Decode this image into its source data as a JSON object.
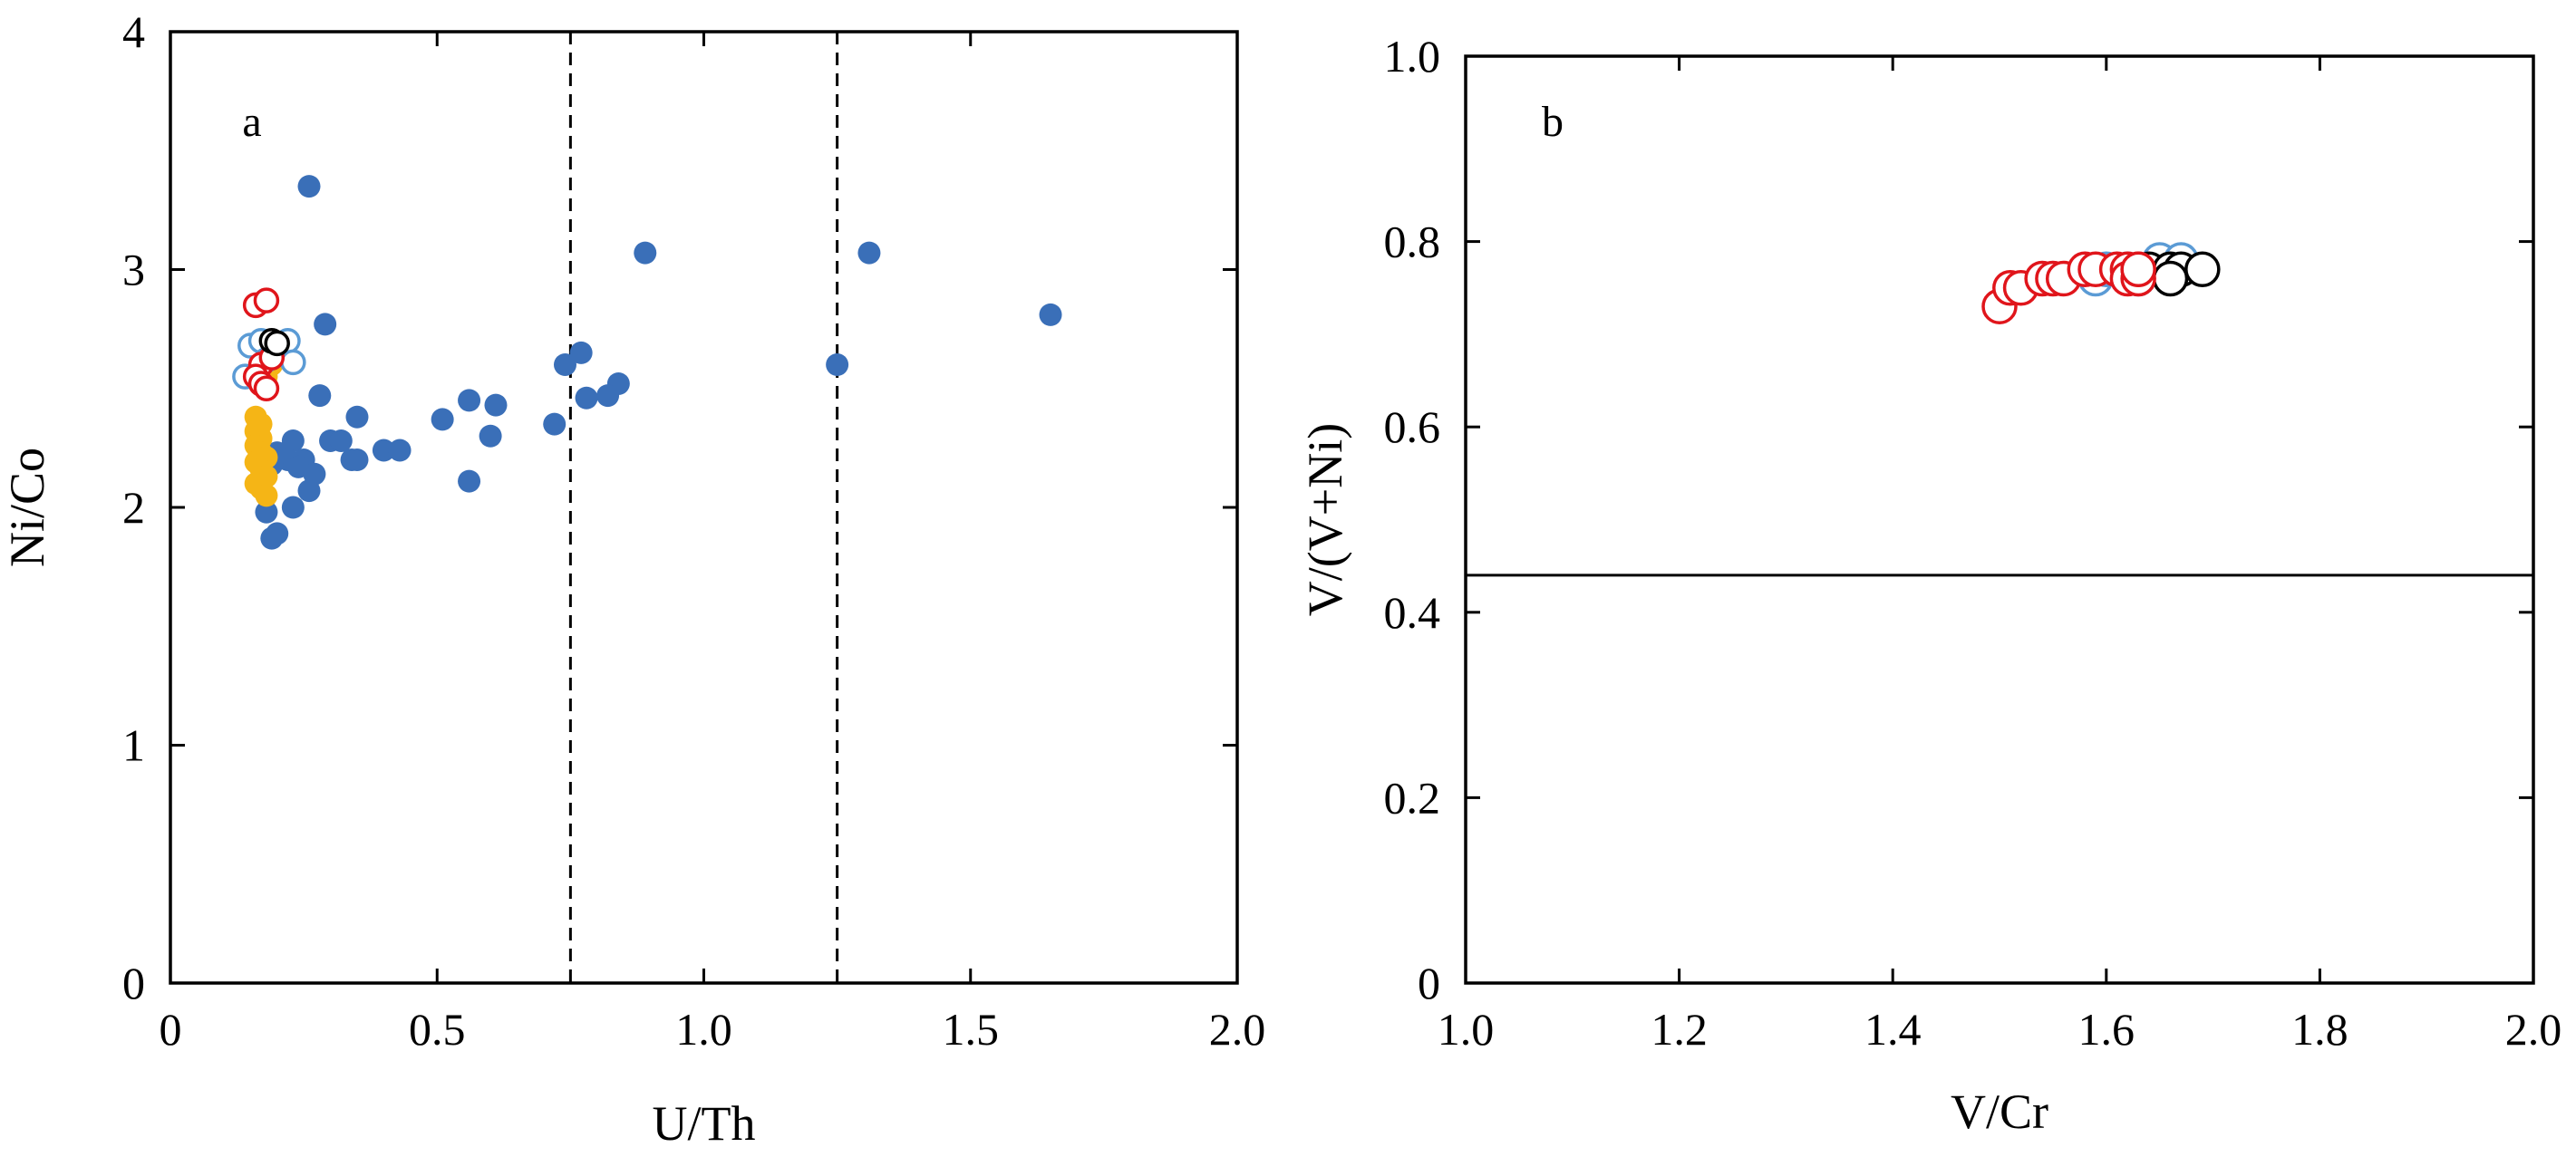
{
  "chart_data": [
    {
      "type": "scatter",
      "panel_label": "a",
      "xlabel": "U/Th",
      "ylabel": "Ni/Co",
      "xlim": [
        0,
        2.0
      ],
      "ylim": [
        0,
        4
      ],
      "x_ticks": [
        0,
        0.5,
        1.0,
        1.5,
        2.0
      ],
      "x_tick_labels": [
        "0",
        "0.5",
        "1.0",
        "1.5",
        "2.0"
      ],
      "y_ticks": [
        0,
        1,
        2,
        3,
        4
      ],
      "y_tick_labels": [
        "0",
        "1",
        "2",
        "3",
        "4"
      ],
      "grid": false,
      "legend": "none",
      "reference_lines": [
        {
          "orientation": "vertical",
          "x": 0.75,
          "style": "dashed"
        },
        {
          "orientation": "vertical",
          "x": 1.25,
          "style": "dashed"
        }
      ],
      "series": [
        {
          "marker": "filled-circle",
          "color": "#3a6fb8",
          "points": [
            [
              0.26,
              3.35
            ],
            [
              0.89,
              3.07
            ],
            [
              1.31,
              3.07
            ],
            [
              1.65,
              2.81
            ],
            [
              0.29,
              2.77
            ],
            [
              0.77,
              2.65
            ],
            [
              0.74,
              2.6
            ],
            [
              1.25,
              2.6
            ],
            [
              0.84,
              2.52
            ],
            [
              0.28,
              2.47
            ],
            [
              0.56,
              2.45
            ],
            [
              0.78,
              2.46
            ],
            [
              0.82,
              2.47
            ],
            [
              0.61,
              2.43
            ],
            [
              0.35,
              2.38
            ],
            [
              0.51,
              2.37
            ],
            [
              0.72,
              2.35
            ],
            [
              0.6,
              2.3
            ],
            [
              0.3,
              2.28
            ],
            [
              0.32,
              2.28
            ],
            [
              0.23,
              2.28
            ],
            [
              0.2,
              2.23
            ],
            [
              0.4,
              2.24
            ],
            [
              0.43,
              2.24
            ],
            [
              0.25,
              2.2
            ],
            [
              0.34,
              2.2
            ],
            [
              0.35,
              2.2
            ],
            [
              0.22,
              2.2
            ],
            [
              0.24,
              2.17
            ],
            [
              0.19,
              2.18
            ],
            [
              0.27,
              2.14
            ],
            [
              0.26,
              2.07
            ],
            [
              0.56,
              2.11
            ],
            [
              0.23,
              2.0
            ],
            [
              0.18,
              1.98
            ],
            [
              0.19,
              1.87
            ],
            [
              0.2,
              1.89
            ]
          ]
        },
        {
          "marker": "filled-circle",
          "color": "#f5b516",
          "points": [
            [
              0.16,
              2.38
            ],
            [
              0.17,
              2.35
            ],
            [
              0.16,
              2.32
            ],
            [
              0.17,
              2.29
            ],
            [
              0.16,
              2.26
            ],
            [
              0.17,
              2.23
            ],
            [
              0.18,
              2.21
            ],
            [
              0.16,
              2.19
            ],
            [
              0.17,
              2.16
            ],
            [
              0.18,
              2.13
            ],
            [
              0.16,
              2.1
            ],
            [
              0.17,
              2.08
            ],
            [
              0.18,
              2.05
            ],
            [
              0.19,
              2.6
            ],
            [
              0.18,
              2.55
            ]
          ]
        },
        {
          "marker": "open-circle",
          "color": "#5b9bd5",
          "points": [
            [
              0.15,
              2.68
            ],
            [
              0.17,
              2.7
            ],
            [
              0.22,
              2.7
            ],
            [
              0.14,
              2.55
            ],
            [
              0.23,
              2.61
            ],
            [
              0.18,
              2.62
            ]
          ]
        },
        {
          "marker": "open-circle",
          "color": "#e0151b",
          "points": [
            [
              0.16,
              2.85
            ],
            [
              0.18,
              2.87
            ],
            [
              0.17,
              2.6
            ],
            [
              0.16,
              2.55
            ],
            [
              0.17,
              2.52
            ],
            [
              0.18,
              2.5
            ],
            [
              0.19,
              2.63
            ]
          ]
        },
        {
          "marker": "open-circle",
          "color": "#000000",
          "points": [
            [
              0.19,
              2.7
            ],
            [
              0.2,
              2.69
            ]
          ]
        }
      ]
    },
    {
      "type": "scatter",
      "panel_label": "b",
      "xlabel": "V/Cr",
      "ylabel": "V/(V+Ni)",
      "xlim": [
        1.0,
        2.0
      ],
      "ylim": [
        0,
        1.0
      ],
      "x_ticks": [
        1.0,
        1.2,
        1.4,
        1.6,
        1.8,
        2.0
      ],
      "x_tick_labels": [
        "1.0",
        "1.2",
        "1.4",
        "1.6",
        "1.8",
        "2.0"
      ],
      "y_ticks": [
        0,
        0.2,
        0.4,
        0.6,
        0.8,
        1.0
      ],
      "y_tick_labels": [
        "0",
        "0.2",
        "0.4",
        "0.6",
        "0.8",
        "1.0"
      ],
      "grid": false,
      "legend": "none",
      "reference_lines": [
        {
          "orientation": "horizontal",
          "y": 0.44,
          "style": "solid"
        }
      ],
      "series": [
        {
          "marker": "open-circle",
          "color": "#5b9bd5",
          "points": [
            [
              1.59,
              0.76
            ],
            [
              1.62,
              0.77
            ],
            [
              1.64,
              0.77
            ],
            [
              1.65,
              0.78
            ],
            [
              1.67,
              0.78
            ],
            [
              1.63,
              0.76
            ],
            [
              1.6,
              0.77
            ]
          ]
        },
        {
          "marker": "open-circle",
          "color": "#000000",
          "points": [
            [
              1.64,
              0.77
            ],
            [
              1.66,
              0.77
            ],
            [
              1.67,
              0.77
            ],
            [
              1.69,
              0.77
            ],
            [
              1.66,
              0.76
            ]
          ]
        },
        {
          "marker": "open-circle",
          "color": "#e0151b",
          "points": [
            [
              1.5,
              0.73
            ],
            [
              1.51,
              0.75
            ],
            [
              1.52,
              0.75
            ],
            [
              1.54,
              0.76
            ],
            [
              1.55,
              0.76
            ],
            [
              1.56,
              0.76
            ],
            [
              1.58,
              0.77
            ],
            [
              1.59,
              0.77
            ],
            [
              1.61,
              0.77
            ],
            [
              1.62,
              0.77
            ],
            [
              1.62,
              0.76
            ],
            [
              1.63,
              0.76
            ],
            [
              1.63,
              0.77
            ],
            [
              1.63,
              0.77
            ]
          ]
        }
      ]
    }
  ]
}
